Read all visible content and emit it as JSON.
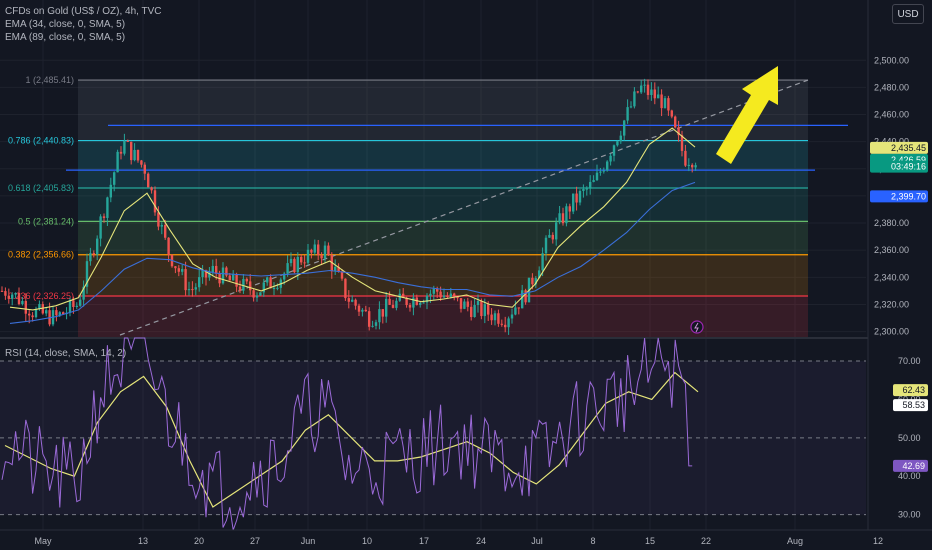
{
  "header": {
    "title": "CFDs on Gold (US$ / OZ), 4h, TVC",
    "indicators": [
      "EMA (34, close, 0, SMA, 5)",
      "EMA (89, close, 0, SMA, 5)"
    ],
    "currency": "USD"
  },
  "colors": {
    "bull": "#26a69a",
    "bear": "#ef5350",
    "ema34": "#e5e57a",
    "ema89": "#3a6fd8",
    "rsi": "#9b6ad8",
    "rsi_ma": "#e5e57a",
    "hline": "#2962ff",
    "arrow": "#f5ea1f"
  },
  "chart_data": {
    "type": "candlestick",
    "x": [
      "May",
      "13",
      "20",
      "27",
      "Jun",
      "10",
      "17",
      "24",
      "Jul",
      "8",
      "15",
      "22",
      "Aug",
      "12"
    ],
    "price_axis": {
      "ticks": [
        "2,500.00",
        "2,480.00",
        "2,460.00",
        "2,440.00",
        "2,420.00",
        "2,400.00",
        "2,380.00",
        "2,360.00",
        "2,340.00",
        "2,320.00",
        "2,300.00"
      ],
      "range": [
        2296,
        2512
      ]
    },
    "fibonacci": [
      {
        "label": "1 (2,485.41)",
        "value": 2485.41,
        "color": "#787b86"
      },
      {
        "label": "0.786 (2,440.83)",
        "value": 2440.83,
        "color": "#26c6da"
      },
      {
        "label": "0.618 (2,405.83)",
        "value": 2405.83,
        "color": "#26a69a"
      },
      {
        "label": "0.5 (2,381.24)",
        "value": 2381.24,
        "color": "#66bb6a"
      },
      {
        "label": "0.382 (2,356.66)",
        "value": 2356.66,
        "color": "#ff9800"
      },
      {
        "label": "0.236 (2,326.25)",
        "value": 2326.25,
        "color": "#f23645"
      }
    ],
    "horizontal_lines": [
      2452,
      2419
    ],
    "price_labels": [
      {
        "text": "2,435.45",
        "value": 2435.45,
        "bg": "#e5e57a",
        "fg": "#131722"
      },
      {
        "text": "2,426.59",
        "value": 2426.59,
        "bg": "#089981",
        "fg": "#ffffff"
      },
      {
        "text": "03:49:16",
        "value": 2421.6,
        "bg": "#089981",
        "fg": "#ffffff"
      },
      {
        "text": "2,399.70",
        "value": 2399.7,
        "bg": "#2962ff",
        "fg": "#ffffff"
      }
    ],
    "ema34": [
      2318,
      2316,
      2319,
      2325,
      2355,
      2389,
      2402,
      2375,
      2350,
      2340,
      2335,
      2330,
      2336,
      2345,
      2352,
      2340,
      2330,
      2326,
      2322,
      2324,
      2327,
      2320,
      2318,
      2335,
      2362,
      2378,
      2392,
      2410,
      2438,
      2450,
      2436
    ],
    "ema89": [
      2306,
      2308,
      2311,
      2316,
      2330,
      2346,
      2354,
      2353,
      2347,
      2343,
      2342,
      2341,
      2342,
      2343,
      2345,
      2343,
      2340,
      2336,
      2333,
      2331,
      2331,
      2327,
      2326,
      2330,
      2340,
      2348,
      2360,
      2373,
      2390,
      2404,
      2410
    ],
    "rsi": {
      "label": "RSI (14, close, SMA, 14, 2)",
      "ticks": [
        "70.00",
        "60.00",
        "50.00",
        "40.00",
        "30.00"
      ],
      "range": [
        26,
        76
      ],
      "levels": [
        70,
        50,
        30
      ],
      "values": [
        49,
        43,
        40,
        38,
        62,
        70,
        72,
        56,
        46,
        38,
        36,
        42,
        44,
        56,
        58,
        42,
        42,
        44,
        46,
        48,
        50,
        46,
        44,
        44,
        46,
        54,
        58,
        61,
        64,
        71,
        63
      ],
      "ma_values": [
        48,
        45,
        42,
        40,
        54,
        62,
        66,
        58,
        44,
        32,
        36,
        40,
        44,
        52,
        56,
        50,
        44,
        44,
        45,
        47,
        49,
        46,
        41,
        38,
        43,
        51,
        59,
        62,
        60,
        67,
        62
      ],
      "labels": [
        {
          "text": "62.43",
          "value": 62.43,
          "bg": "#e5e57a",
          "fg": "#131722"
        },
        {
          "text": "58.53",
          "value": 58.53,
          "bg": "#ffffff",
          "fg": "#131722"
        },
        {
          "text": "42.69",
          "value": 42.69,
          "bg": "#7e57c2",
          "fg": "#ffffff"
        }
      ]
    }
  }
}
